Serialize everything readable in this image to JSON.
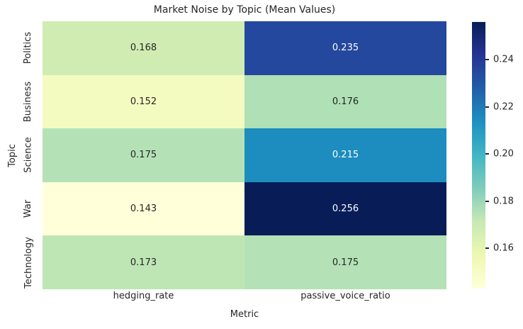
{
  "chart_data": {
    "type": "heatmap",
    "title": "Market Noise by Topic (Mean Values)",
    "xlabel": "Metric",
    "ylabel": "Topic",
    "columns": [
      "hedging_rate",
      "passive_voice_ratio"
    ],
    "rows": [
      "Politics",
      "Business",
      "Science",
      "War",
      "Technology"
    ],
    "values": [
      [
        0.168,
        0.235
      ],
      [
        0.152,
        0.176
      ],
      [
        0.175,
        0.215
      ],
      [
        0.143,
        0.256
      ],
      [
        0.173,
        0.175
      ]
    ],
    "value_decimals": 3,
    "vmin": 0.143,
    "vmax": 0.256,
    "colormap": "YlGnBu",
    "colormap_stops": [
      {
        "pos": 0.0,
        "color": "#ffffd9"
      },
      {
        "pos": 0.125,
        "color": "#edf8b1"
      },
      {
        "pos": 0.25,
        "color": "#c7e9b4"
      },
      {
        "pos": 0.375,
        "color": "#7fcdbb"
      },
      {
        "pos": 0.5,
        "color": "#41b6c4"
      },
      {
        "pos": 0.625,
        "color": "#1d91c0"
      },
      {
        "pos": 0.75,
        "color": "#225ea8"
      },
      {
        "pos": 0.875,
        "color": "#253494"
      },
      {
        "pos": 1.0,
        "color": "#081d58"
      }
    ],
    "colorbar_ticks": [
      {
        "value": 0.24,
        "label": "0.24"
      },
      {
        "value": 0.22,
        "label": "0.22"
      },
      {
        "value": 0.2,
        "label": "0.20"
      },
      {
        "value": 0.18,
        "label": "0.18"
      },
      {
        "value": 0.16,
        "label": "0.16"
      }
    ],
    "annotation_text_colors": {
      "on_light": "#262626",
      "on_dark": "#ffffff"
    },
    "legend_position": "right-colorbar",
    "grid": false
  }
}
